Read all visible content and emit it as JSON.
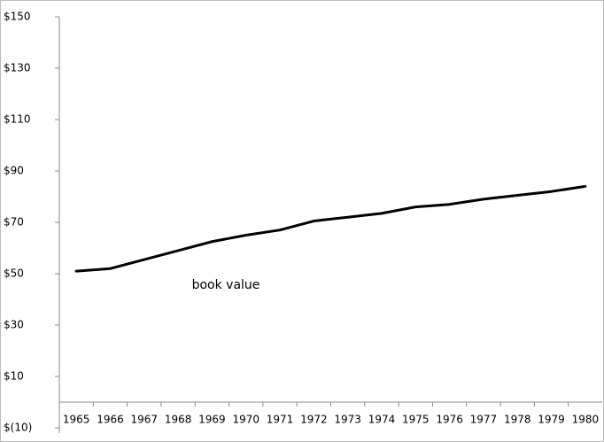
{
  "chart_data": {
    "type": "line",
    "annotation": "book value",
    "categories": [
      "1965",
      "1966",
      "1967",
      "1968",
      "1969",
      "1970",
      "1971",
      "1972",
      "1973",
      "1974",
      "1975",
      "1976",
      "1977",
      "1978",
      "1979",
      "1980"
    ],
    "series": [
      {
        "name": "book value",
        "color": "#000000",
        "values": [
          51,
          52,
          55.5,
          59,
          62.5,
          65,
          67,
          70.5,
          72,
          73.5,
          76,
          77,
          79,
          80.5,
          82,
          84
        ]
      }
    ],
    "ylim": [
      -10,
      150
    ],
    "yticks": [
      {
        "value": -10,
        "label": "$(10)"
      },
      {
        "value": 10,
        "label": "$10"
      },
      {
        "value": 30,
        "label": "$30"
      },
      {
        "value": 50,
        "label": "$50"
      },
      {
        "value": 70,
        "label": "$70"
      },
      {
        "value": 90,
        "label": "$90"
      },
      {
        "value": 110,
        "label": "$110"
      },
      {
        "value": 130,
        "label": "$130"
      },
      {
        "value": 150,
        "label": "$150"
      }
    ],
    "grid": false
  }
}
